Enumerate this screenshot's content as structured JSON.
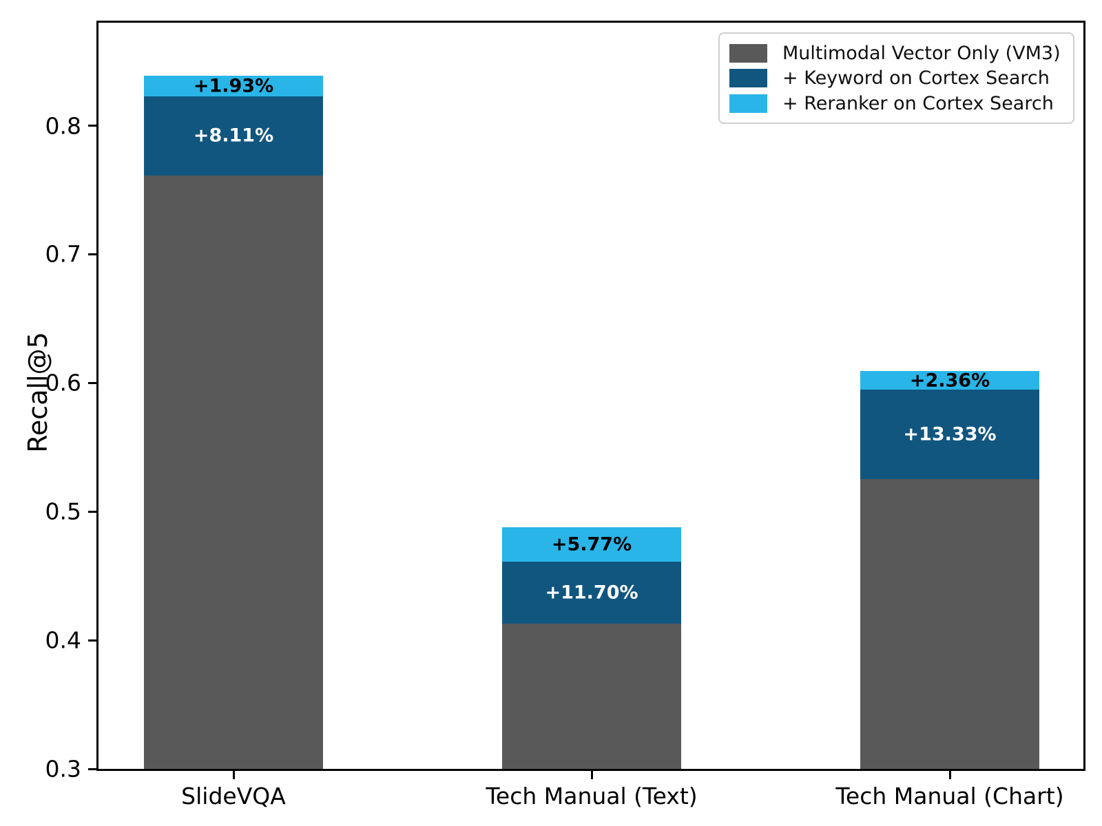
{
  "figure": {
    "background": "#ffffff",
    "text_color": "#000000"
  },
  "chart_data": {
    "type": "bar",
    "stacked": true,
    "title": "",
    "xlabel": "",
    "ylabel": "Recall@5",
    "ylim": [
      0.3,
      0.88
    ],
    "grid": false,
    "legend_position": "upper right",
    "yticks": [
      0.3,
      0.4,
      0.5,
      0.6,
      0.7,
      0.8
    ],
    "ytick_labels": [
      "0.3",
      "0.4",
      "0.5",
      "0.6",
      "0.7",
      "0.8"
    ],
    "categories": [
      "SlideVQA",
      "Tech Manual (Text)",
      "Tech Manual (Chart)"
    ],
    "series": [
      {
        "name": "Multimodal Vector Only (VM3)",
        "color": "#595959",
        "cumulative_totals": [
          0.761,
          0.413,
          0.525
        ],
        "annotations": [
          "",
          "",
          ""
        ],
        "annotation_color": "#ffffff"
      },
      {
        "name": "+ Keyword on Cortex Search",
        "color": "#11567f",
        "cumulative_totals": [
          0.823,
          0.461,
          0.595
        ],
        "annotations": [
          "+8.11%",
          "+11.70%",
          "+13.33%"
        ],
        "annotation_color": "#ffffff"
      },
      {
        "name": "+ Reranker on Cortex Search",
        "color": "#29b5e8",
        "cumulative_totals": [
          0.839,
          0.488,
          0.609
        ],
        "annotations": [
          "+1.93%",
          "+5.77%",
          "+2.36%"
        ],
        "annotation_color": "#000000"
      }
    ]
  }
}
